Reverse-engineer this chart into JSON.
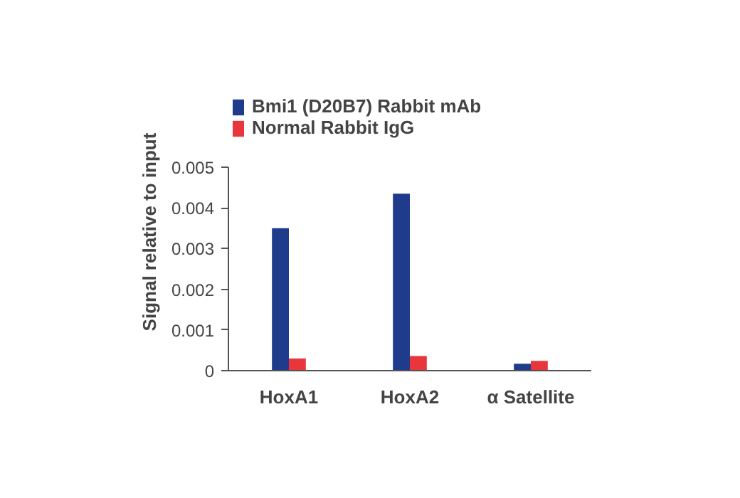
{
  "chart_data": {
    "type": "bar",
    "ylabel": "Signal relative to input",
    "categories": [
      "HoxA1",
      "HoxA2",
      "α Satellite"
    ],
    "series": [
      {
        "name": "Bmi1 (D20B7) Rabbit mAb",
        "color": "#1f3b8c",
        "values": [
          0.0035,
          0.00435,
          0.00017
        ]
      },
      {
        "name": "Normal Rabbit IgG",
        "color": "#e8363c",
        "values": [
          0.0003,
          0.00036,
          0.00024
        ]
      }
    ],
    "ylim": [
      0,
      0.005
    ],
    "yticks": [
      0,
      0.001,
      0.002,
      0.003,
      0.004,
      0.005
    ],
    "grid": false,
    "legend": "top left"
  }
}
